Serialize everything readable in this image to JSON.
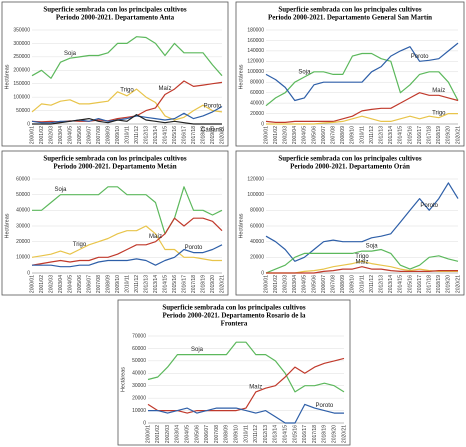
{
  "chart_data": [
    {
      "type": "line",
      "title": [
        "Superficie sembrada con los principales cultivos",
        "Periodo 2000-2021. Departamento Anta"
      ],
      "y_label": "Hectáreas",
      "categories": [
        "2000/01",
        "2001/02",
        "2002/03",
        "2003/04",
        "2004/05",
        "2005/06",
        "2006/07",
        "2007/08",
        "2008/09",
        "2009/10",
        "2010/11",
        "2011/12",
        "2012/13",
        "2013/14",
        "2014/15",
        "2015/16",
        "2016/17",
        "2017/18",
        "2018/19",
        "2019/20",
        "2020/21"
      ],
      "ylim": [
        0,
        350000
      ],
      "yticks": [
        0,
        50000,
        100000,
        150000,
        200000,
        250000,
        300000,
        350000
      ],
      "grid": true,
      "series": [
        {
          "name": "Soja",
          "color": "#5cb85c",
          "values": [
            180000,
            200000,
            170000,
            230000,
            245000,
            250000,
            255000,
            255000,
            265000,
            300000,
            300000,
            325000,
            322000,
            300000,
            255000,
            300000,
            265000,
            265000,
            265000,
            220000,
            180000
          ]
        },
        {
          "name": "Trigo",
          "color": "#e8c44a",
          "values": [
            45000,
            75000,
            70000,
            85000,
            90000,
            75000,
            75000,
            80000,
            85000,
            120000,
            105000,
            130000,
            100000,
            80000,
            30000,
            15000,
            25000,
            50000,
            70000,
            50000,
            45000
          ]
        },
        {
          "name": "Maíz",
          "color": "#c0392b",
          "values": [
            10000,
            8000,
            10000,
            8000,
            12000,
            10000,
            10000,
            15000,
            12000,
            20000,
            25000,
            30000,
            50000,
            60000,
            110000,
            130000,
            160000,
            140000,
            145000,
            150000,
            155000
          ]
        },
        {
          "name": "Poroto",
          "color": "#2e5fa8",
          "values": [
            10000,
            5000,
            5000,
            10000,
            10000,
            15000,
            10000,
            20000,
            10000,
            15000,
            20000,
            30000,
            25000,
            20000,
            15000,
            20000,
            40000,
            20000,
            30000,
            45000,
            65000
          ]
        },
        {
          "name": "Cártamo",
          "color": "#222222",
          "values": [
            0,
            0,
            0,
            5000,
            10000,
            15000,
            20000,
            10000,
            5000,
            15000,
            10000,
            35000,
            15000,
            10000,
            5000,
            10000,
            5000,
            0,
            0,
            0,
            0
          ]
        }
      ]
    },
    {
      "type": "line",
      "title": [
        "Superficie sembrada con los principales cultivos",
        "Periodo 2000-2021. Departamento General San Martín"
      ],
      "y_label": "Hectáreas",
      "categories": [
        "2000/01",
        "2001/02",
        "2002/03",
        "2003/04",
        "2004/05",
        "2005/06",
        "2006/07",
        "2007/08",
        "2008/09",
        "2009/10",
        "2010/11",
        "2011/12",
        "2012/13",
        "2013/14",
        "2014/15",
        "2015/16",
        "2016/17",
        "2017/18",
        "2018/19",
        "2019/20",
        "2020/21"
      ],
      "ylim": [
        0,
        180000
      ],
      "yticks": [
        0,
        20000,
        40000,
        60000,
        80000,
        100000,
        120000,
        140000,
        160000,
        180000
      ],
      "grid": true,
      "series": [
        {
          "name": "Soja",
          "color": "#5cb85c",
          "values": [
            35000,
            50000,
            60000,
            80000,
            90000,
            100000,
            100000,
            95000,
            95000,
            130000,
            135000,
            135000,
            125000,
            120000,
            60000,
            75000,
            95000,
            100000,
            100000,
            80000,
            45000
          ]
        },
        {
          "name": "Poroto",
          "color": "#2e5fa8",
          "values": [
            95000,
            85000,
            70000,
            45000,
            50000,
            75000,
            80000,
            80000,
            80000,
            80000,
            80000,
            100000,
            110000,
            130000,
            140000,
            148000,
            120000,
            122000,
            125000,
            140000,
            155000
          ]
        },
        {
          "name": "Maíz",
          "color": "#c0392b",
          "values": [
            5000,
            3000,
            3000,
            5000,
            5000,
            5000,
            5000,
            5000,
            10000,
            15000,
            25000,
            28000,
            30000,
            30000,
            40000,
            50000,
            60000,
            55000,
            55000,
            50000,
            45000
          ]
        },
        {
          "name": "Trigo",
          "color": "#e8c44a",
          "values": [
            0,
            0,
            0,
            0,
            0,
            0,
            2000,
            3000,
            5000,
            10000,
            15000,
            10000,
            5000,
            5000,
            10000,
            15000,
            10000,
            15000,
            12000,
            20000,
            20000
          ]
        }
      ]
    },
    {
      "type": "line",
      "title": [
        "Superficie sembrada con los principales cultivos",
        "Periodo 2000-2021. Departamento Metán"
      ],
      "y_label": "Hectáreas",
      "categories": [
        "2000/01",
        "2001/02",
        "2002/03",
        "2003/04",
        "2004/05",
        "2005/06",
        "2006/07",
        "2007/08",
        "2008/09",
        "2009/10",
        "2010/11",
        "2011/12",
        "2012/13",
        "2013/14",
        "2014/15",
        "2015/16",
        "2016/17",
        "2017/18",
        "2018/19",
        "2019/20",
        "2020/21"
      ],
      "ylim": [
        0,
        60000
      ],
      "yticks": [
        0,
        10000,
        20000,
        30000,
        40000,
        50000,
        60000
      ],
      "grid": true,
      "series": [
        {
          "name": "Soja",
          "color": "#5cb85c",
          "values": [
            40000,
            40000,
            45000,
            50000,
            50000,
            50000,
            50000,
            50000,
            55000,
            55000,
            50000,
            50000,
            50000,
            45000,
            25000,
            35000,
            55000,
            40000,
            40000,
            37000,
            40000
          ]
        },
        {
          "name": "Trigo",
          "color": "#e8c44a",
          "values": [
            10000,
            11000,
            12000,
            14000,
            12000,
            15000,
            18000,
            20000,
            22000,
            25000,
            27000,
            27000,
            30000,
            25000,
            15000,
            15000,
            10000,
            10000,
            9000,
            8000,
            8000
          ]
        },
        {
          "name": "Maíz",
          "color": "#c0392b",
          "values": [
            5000,
            6000,
            7000,
            8000,
            7000,
            8000,
            8000,
            10000,
            10000,
            12000,
            15000,
            18000,
            18000,
            20000,
            25000,
            35000,
            30000,
            35000,
            35000,
            33000,
            27000
          ]
        },
        {
          "name": "Poroto",
          "color": "#2e5fa8",
          "values": [
            5000,
            5000,
            5000,
            4000,
            4000,
            5000,
            5000,
            7000,
            8000,
            8000,
            8000,
            9000,
            8000,
            5000,
            8000,
            10000,
            15000,
            13000,
            13000,
            15000,
            18000
          ]
        }
      ]
    },
    {
      "type": "line",
      "title": [
        "Superficie sembrada con los principales cultivos",
        "Periodo 2000-2021. Departamento Orán"
      ],
      "y_label": "Hectáreas",
      "categories": [
        "2000/01",
        "2001/02",
        "2002/03",
        "2003/04",
        "2004/05",
        "2005/06",
        "2006/07",
        "2007/08",
        "2008/09",
        "2009/10",
        "2010/11",
        "2011/12",
        "2012/13",
        "2013/14",
        "2014/15",
        "2015/16",
        "2016/17",
        "2017/18",
        "2018/19",
        "2019/20",
        "2020/21"
      ],
      "ylim": [
        0,
        120000
      ],
      "yticks": [
        0,
        20000,
        40000,
        60000,
        80000,
        100000,
        120000
      ],
      "grid": true,
      "series": [
        {
          "name": "Poroto",
          "color": "#2e5fa8",
          "values": [
            47000,
            40000,
            30000,
            15000,
            20000,
            30000,
            40000,
            42000,
            40000,
            40000,
            40000,
            45000,
            47000,
            50000,
            65000,
            80000,
            95000,
            80000,
            95000,
            115000,
            95000
          ]
        },
        {
          "name": "Soja",
          "color": "#5cb85c",
          "values": [
            0,
            5000,
            10000,
            20000,
            25000,
            25000,
            25000,
            25000,
            25000,
            25000,
            28000,
            28000,
            30000,
            25000,
            10000,
            5000,
            10000,
            20000,
            22000,
            18000,
            15000
          ]
        },
        {
          "name": "Trigo",
          "color": "#e8c44a",
          "values": [
            0,
            0,
            0,
            0,
            2000,
            3000,
            5000,
            8000,
            10000,
            12000,
            15000,
            12000,
            10000,
            8000,
            5000,
            3000,
            5000,
            3000,
            2000,
            2000,
            2000
          ]
        },
        {
          "name": "Maíz",
          "color": "#c0392b",
          "values": [
            0,
            0,
            0,
            0,
            0,
            0,
            2000,
            3000,
            5000,
            5000,
            8000,
            5000,
            5000,
            3000,
            2000,
            2000,
            2000,
            2000,
            3000,
            3000,
            3000
          ]
        }
      ]
    },
    {
      "type": "line",
      "title": [
        "Superficie sembrada con los principales cultivos",
        "Periodo 2000-2021. Departamento Rosario de la",
        "Frontera"
      ],
      "y_label": "Hectáreas",
      "categories": [
        "2000/01",
        "2001/02",
        "2002/03",
        "2003/04",
        "2004/05",
        "2005/06",
        "2006/07",
        "2007/08",
        "2008/09",
        "2009/10",
        "2010/11",
        "2011/12",
        "2012/13",
        "2013/14",
        "2014/15",
        "2015/16",
        "2016/17",
        "2017/18",
        "2018/19",
        "2019/20",
        "2020/21"
      ],
      "ylim": [
        0,
        70000
      ],
      "yticks": [
        0,
        10000,
        20000,
        30000,
        40000,
        50000,
        60000,
        70000
      ],
      "grid": true,
      "series": [
        {
          "name": "Soja",
          "color": "#5cb85c",
          "values": [
            35000,
            37000,
            45000,
            55000,
            55000,
            55000,
            55000,
            55000,
            55000,
            65000,
            65000,
            55000,
            55000,
            50000,
            40000,
            25000,
            30000,
            30000,
            32000,
            30000,
            25000
          ]
        },
        {
          "name": "Maíz",
          "color": "#c0392b",
          "values": [
            15000,
            10000,
            10000,
            10000,
            8000,
            10000,
            10000,
            10000,
            10000,
            10000,
            12000,
            25000,
            28000,
            30000,
            37000,
            45000,
            40000,
            45000,
            48000,
            50000,
            52000
          ]
        },
        {
          "name": "Poroto",
          "color": "#2e5fa8",
          "values": [
            10000,
            10000,
            8000,
            10000,
            12000,
            8000,
            10000,
            12000,
            12000,
            12000,
            10000,
            8000,
            10000,
            5000,
            0,
            0,
            15000,
            12000,
            10000,
            8000,
            8000
          ]
        }
      ]
    }
  ]
}
